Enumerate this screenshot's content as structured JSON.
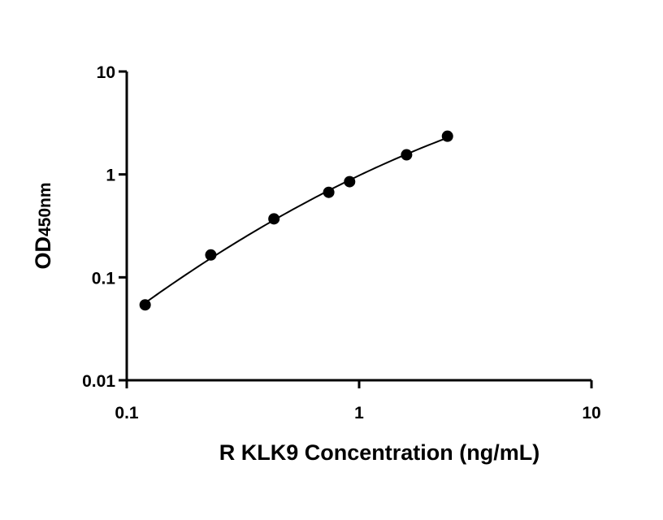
{
  "chart_data": {
    "type": "scatter",
    "xlabel": "R KLK9 Concentration (ng/mL)",
    "ylabel_main": "OD",
    "ylabel_sub": "450nm",
    "xscale": "log",
    "yscale": "log",
    "xlim": [
      0.1,
      10
    ],
    "ylim": [
      0.01,
      10
    ],
    "x_ticks": [
      0.1,
      1,
      10
    ],
    "x_tick_labels": [
      "0.1",
      "1",
      "10"
    ],
    "y_ticks": [
      0.01,
      0.1,
      1,
      10
    ],
    "y_tick_labels": [
      "0.01",
      "0.1",
      "1",
      "10"
    ],
    "grid": false,
    "legend": "none",
    "series": [
      {
        "x": [
          0.12,
          0.23,
          0.43,
          0.74,
          0.91,
          1.6,
          2.4
        ],
        "y": [
          0.054,
          0.165,
          0.37,
          0.67,
          0.85,
          1.55,
          2.35
        ],
        "fit": "smooth curve"
      }
    ],
    "colors": {
      "points": "#000000",
      "curve": "#000000"
    }
  }
}
